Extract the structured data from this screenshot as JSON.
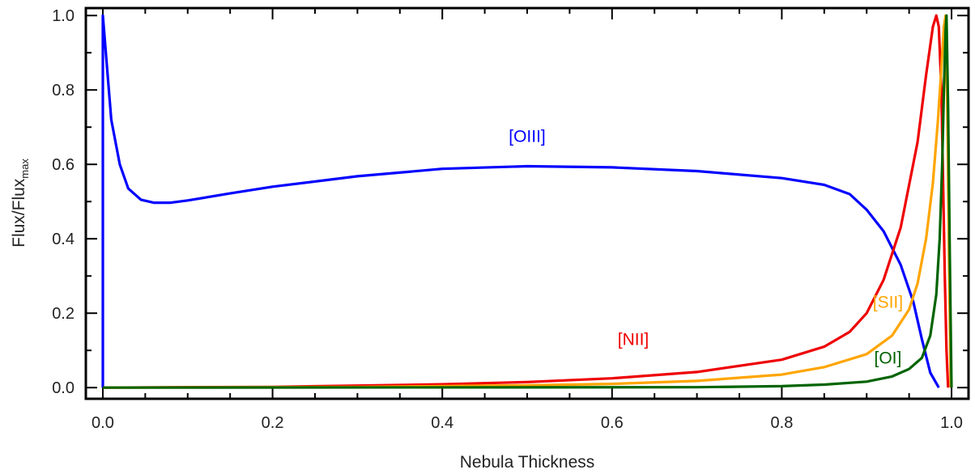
{
  "chart_data": {
    "type": "line",
    "xlabel": "Nebula Thickness",
    "ylabel": {
      "base": "Flux/Flux",
      "subscript": "max"
    },
    "xlim": [
      -0.02,
      1.02
    ],
    "ylim": [
      -0.03,
      1.02
    ],
    "x_ticks": [
      "0.0",
      "0.2",
      "0.4",
      "0.6",
      "0.8",
      "1.0"
    ],
    "y_ticks": [
      "0.0",
      "0.2",
      "0.4",
      "0.6",
      "0.8",
      "1.0"
    ],
    "grid": false,
    "series": [
      {
        "name": "[OIII]",
        "color": "#0000ff",
        "label_at": [
          0.5,
          0.66
        ],
        "points": [
          [
            0.0,
            0.0
          ],
          [
            0.0,
            1.0
          ],
          [
            0.005,
            0.86
          ],
          [
            0.01,
            0.72
          ],
          [
            0.02,
            0.6
          ],
          [
            0.03,
            0.535
          ],
          [
            0.045,
            0.505
          ],
          [
            0.06,
            0.497
          ],
          [
            0.08,
            0.497
          ],
          [
            0.1,
            0.503
          ],
          [
            0.15,
            0.522
          ],
          [
            0.2,
            0.54
          ],
          [
            0.3,
            0.568
          ],
          [
            0.4,
            0.588
          ],
          [
            0.5,
            0.595
          ],
          [
            0.6,
            0.592
          ],
          [
            0.7,
            0.582
          ],
          [
            0.8,
            0.563
          ],
          [
            0.85,
            0.545
          ],
          [
            0.88,
            0.52
          ],
          [
            0.9,
            0.478
          ],
          [
            0.92,
            0.42
          ],
          [
            0.94,
            0.33
          ],
          [
            0.955,
            0.23
          ],
          [
            0.965,
            0.13
          ],
          [
            0.975,
            0.04
          ],
          [
            0.985,
            0.0
          ]
        ]
      },
      {
        "name": "[NII]",
        "color": "#ee0000",
        "label_at": [
          0.625,
          0.115
        ],
        "points": [
          [
            0.0,
            0.0
          ],
          [
            0.2,
            0.002
          ],
          [
            0.4,
            0.009
          ],
          [
            0.5,
            0.015
          ],
          [
            0.6,
            0.025
          ],
          [
            0.7,
            0.042
          ],
          [
            0.8,
            0.075
          ],
          [
            0.85,
            0.11
          ],
          [
            0.88,
            0.15
          ],
          [
            0.9,
            0.2
          ],
          [
            0.92,
            0.29
          ],
          [
            0.94,
            0.43
          ],
          [
            0.96,
            0.66
          ],
          [
            0.97,
            0.84
          ],
          [
            0.978,
            0.97
          ],
          [
            0.982,
            1.0
          ],
          [
            0.985,
            0.97
          ],
          [
            0.988,
            0.8
          ],
          [
            0.99,
            0.55
          ],
          [
            0.992,
            0.3
          ],
          [
            0.994,
            0.1
          ],
          [
            0.996,
            0.0
          ]
        ]
      },
      {
        "name": "[SII]",
        "color": "#ffa500",
        "label_at": [
          0.925,
          0.215
        ],
        "points": [
          [
            0.0,
            0.0
          ],
          [
            0.3,
            0.002
          ],
          [
            0.5,
            0.006
          ],
          [
            0.6,
            0.01
          ],
          [
            0.7,
            0.018
          ],
          [
            0.8,
            0.035
          ],
          [
            0.85,
            0.055
          ],
          [
            0.9,
            0.09
          ],
          [
            0.93,
            0.14
          ],
          [
            0.95,
            0.21
          ],
          [
            0.96,
            0.28
          ],
          [
            0.97,
            0.4
          ],
          [
            0.978,
            0.55
          ],
          [
            0.984,
            0.72
          ],
          [
            0.988,
            0.86
          ],
          [
            0.991,
            0.97
          ],
          [
            0.993,
            1.0
          ],
          [
            0.995,
            0.75
          ],
          [
            0.997,
            0.35
          ],
          [
            0.999,
            0.0
          ]
        ]
      },
      {
        "name": "[OI]",
        "color": "#006400",
        "label_at": [
          0.925,
          0.065
        ],
        "points": [
          [
            0.0,
            0.0
          ],
          [
            0.7,
            0.001
          ],
          [
            0.8,
            0.004
          ],
          [
            0.85,
            0.008
          ],
          [
            0.9,
            0.016
          ],
          [
            0.93,
            0.03
          ],
          [
            0.95,
            0.05
          ],
          [
            0.965,
            0.08
          ],
          [
            0.975,
            0.14
          ],
          [
            0.982,
            0.25
          ],
          [
            0.986,
            0.4
          ],
          [
            0.989,
            0.6
          ],
          [
            0.991,
            0.8
          ],
          [
            0.993,
            0.96
          ],
          [
            0.994,
            1.0
          ],
          [
            0.996,
            0.75
          ],
          [
            0.998,
            0.35
          ],
          [
            1.0,
            0.0
          ]
        ]
      }
    ]
  }
}
